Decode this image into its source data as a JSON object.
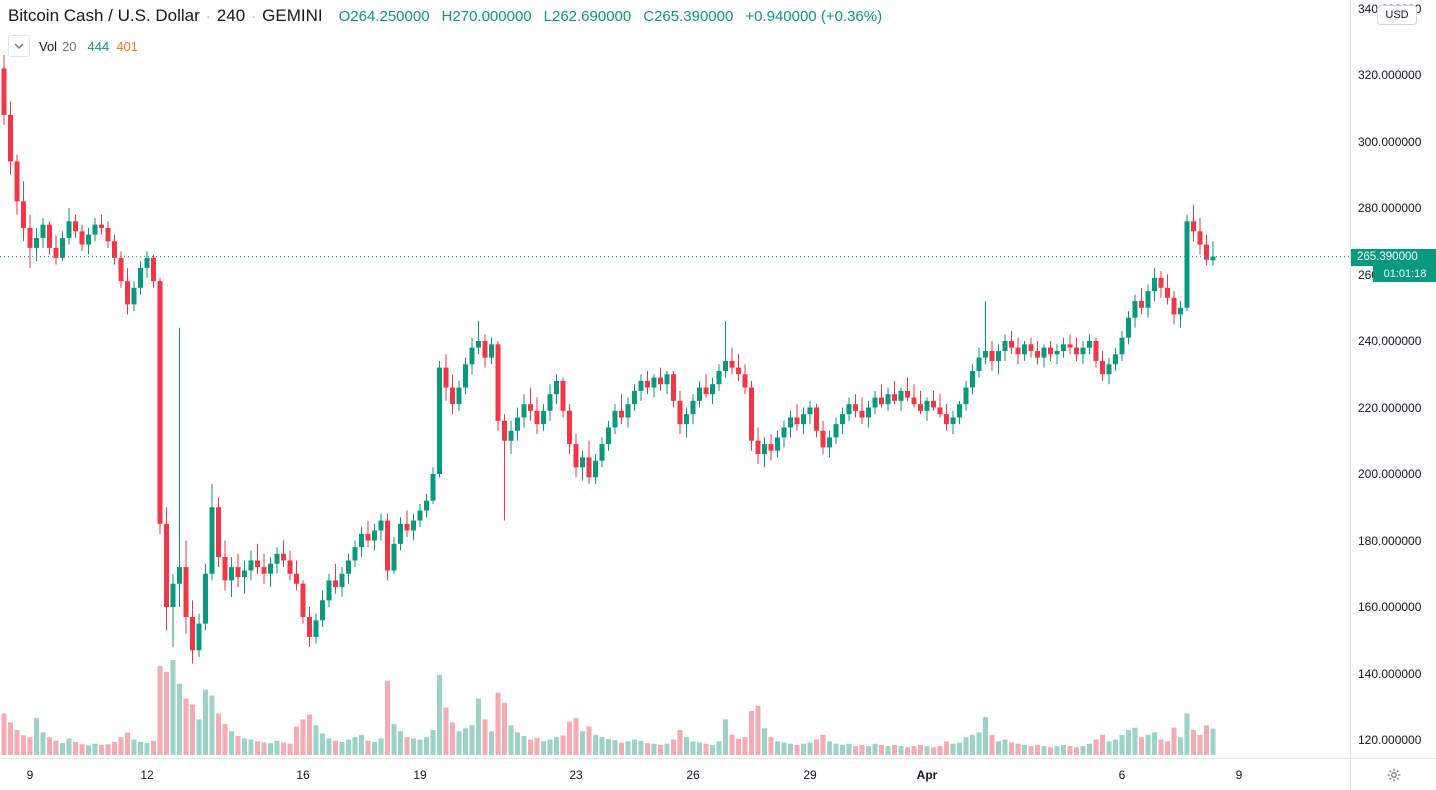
{
  "header": {
    "symbol_title": "Bitcoin Cash / U.S. Dollar",
    "separator": "·",
    "interval": "240",
    "exchange": "GEMINI",
    "ohlc": {
      "open": "O264.250000",
      "high": "H270.000000",
      "low": "L262.690000",
      "close": "C265.390000",
      "change": "+0.940000 (+0.36%)"
    },
    "indicator": {
      "name": "Vol",
      "length": "20",
      "value": "444",
      "ma_value": "401"
    }
  },
  "price_axis": {
    "unit_button": "USD",
    "labels": [
      {
        "price": 340,
        "text": "340.000000"
      },
      {
        "price": 320,
        "text": "320.000000"
      },
      {
        "price": 300,
        "text": "300.000000"
      },
      {
        "price": 280,
        "text": "280.000000"
      },
      {
        "price": 260,
        "text": "260.000000"
      },
      {
        "price": 240,
        "text": "240.000000"
      },
      {
        "price": 220,
        "text": "220.000000"
      },
      {
        "price": 200,
        "text": "200.000000"
      },
      {
        "price": 180,
        "text": "180.000000"
      },
      {
        "price": 160,
        "text": "160.000000"
      },
      {
        "price": 140,
        "text": "140.000000"
      },
      {
        "price": 120,
        "text": "120.000000"
      }
    ],
    "price_badge": {
      "text": "265.390000"
    },
    "countdown_badge": {
      "text": "01:01:18"
    }
  },
  "time_axis": {
    "labels": [
      {
        "text": "9",
        "bar": 4
      },
      {
        "text": "12",
        "bar": 22
      },
      {
        "text": "16",
        "bar": 46
      },
      {
        "text": "19",
        "bar": 64
      },
      {
        "text": "23",
        "bar": 88
      },
      {
        "text": "26",
        "bar": 106
      },
      {
        "text": "29",
        "bar": 124
      },
      {
        "text": "Apr",
        "bar": 142,
        "bold": true
      },
      {
        "text": "6",
        "bar": 172
      },
      {
        "text": "9",
        "bar": 190
      }
    ]
  },
  "colors": {
    "up": "#089981",
    "down": "#f23645",
    "vol_up": "#9bd3c8",
    "vol_down": "#f6aab2",
    "axis_text": "#131722",
    "border": "#e0e3eb",
    "ma_orange": "#f57c00"
  },
  "chart_data": {
    "type": "candlestick+volume",
    "title": "Bitcoin Cash / U.S. Dollar",
    "exchange": "GEMINI",
    "interval_minutes": 240,
    "last_price": 265.39,
    "price_line_style": "dotted",
    "ylim": [
      120,
      340
    ],
    "volume_scale_max": 1600,
    "legend_position": "top-left",
    "grid": false,
    "columns": [
      "open",
      "high",
      "low",
      "close",
      "volume"
    ],
    "candles": [
      [
        322,
        326,
        305,
        308,
        700
      ],
      [
        308,
        312,
        290,
        294,
        550
      ],
      [
        294,
        296,
        278,
        282,
        420
      ],
      [
        282,
        288,
        270,
        274,
        330
      ],
      [
        274,
        278,
        262,
        268,
        300
      ],
      [
        268,
        274,
        264,
        271,
        620
      ],
      [
        271,
        277,
        268,
        275,
        380
      ],
      [
        275,
        276,
        266,
        268,
        300
      ],
      [
        268,
        272,
        263,
        265,
        240
      ],
      [
        265,
        273,
        264,
        271,
        200
      ],
      [
        271,
        280,
        269,
        276,
        280
      ],
      [
        276,
        278,
        271,
        273,
        220
      ],
      [
        273,
        275,
        267,
        269,
        180
      ],
      [
        269,
        274,
        266,
        272,
        160
      ],
      [
        272,
        277,
        270,
        275,
        190
      ],
      [
        275,
        278,
        272,
        274,
        170
      ],
      [
        274,
        276,
        268,
        270,
        180
      ],
      [
        270,
        272,
        263,
        265,
        220
      ],
      [
        265,
        267,
        256,
        258,
        300
      ],
      [
        258,
        262,
        248,
        251,
        380
      ],
      [
        251,
        258,
        249,
        256,
        260
      ],
      [
        256,
        264,
        254,
        262,
        220
      ],
      [
        262,
        267,
        259,
        265,
        200
      ],
      [
        265,
        266,
        256,
        258,
        240
      ],
      [
        258,
        259,
        182,
        185,
        1500
      ],
      [
        185,
        190,
        153,
        160,
        1400
      ],
      [
        160,
        170,
        148,
        167,
        1600
      ],
      [
        167,
        244,
        160,
        172,
        1200
      ],
      [
        172,
        180,
        152,
        157,
        950
      ],
      [
        157,
        162,
        143,
        147,
        850
      ],
      [
        147,
        158,
        145,
        155,
        600
      ],
      [
        155,
        173,
        153,
        170,
        1100
      ],
      [
        170,
        197,
        168,
        190,
        1000
      ],
      [
        190,
        193,
        172,
        175,
        700
      ],
      [
        175,
        180,
        165,
        168,
        520
      ],
      [
        168,
        175,
        163,
        172,
        400
      ],
      [
        172,
        176,
        166,
        169,
        320
      ],
      [
        169,
        174,
        164,
        171,
        280
      ],
      [
        171,
        177,
        168,
        174,
        260
      ],
      [
        174,
        179,
        170,
        172,
        230
      ],
      [
        172,
        176,
        167,
        170,
        210
      ],
      [
        170,
        175,
        166,
        173,
        200
      ],
      [
        173,
        178,
        170,
        176,
        240
      ],
      [
        176,
        180,
        172,
        174,
        210
      ],
      [
        174,
        177,
        168,
        170,
        190
      ],
      [
        170,
        174,
        165,
        167,
        480
      ],
      [
        167,
        168,
        155,
        157,
        600
      ],
      [
        157,
        160,
        148,
        151,
        680
      ],
      [
        151,
        158,
        149,
        156,
        500
      ],
      [
        156,
        165,
        154,
        162,
        360
      ],
      [
        162,
        170,
        160,
        168,
        280
      ],
      [
        168,
        173,
        164,
        166,
        240
      ],
      [
        166,
        172,
        163,
        170,
        220
      ],
      [
        170,
        176,
        167,
        174,
        260
      ],
      [
        174,
        180,
        172,
        178,
        300
      ],
      [
        178,
        184,
        175,
        182,
        340
      ],
      [
        182,
        186,
        178,
        180,
        240
      ],
      [
        180,
        185,
        177,
        183,
        220
      ],
      [
        183,
        188,
        180,
        186,
        280
      ],
      [
        186,
        188,
        168,
        171,
        1250
      ],
      [
        171,
        181,
        170,
        179,
        520
      ],
      [
        179,
        187,
        177,
        185,
        400
      ],
      [
        185,
        189,
        181,
        183,
        300
      ],
      [
        183,
        188,
        180,
        186,
        280
      ],
      [
        186,
        191,
        184,
        189,
        260
      ],
      [
        189,
        194,
        187,
        192,
        300
      ],
      [
        192,
        202,
        191,
        200,
        420
      ],
      [
        200,
        234,
        199,
        232,
        1350
      ],
      [
        232,
        236,
        222,
        226,
        800
      ],
      [
        226,
        230,
        218,
        221,
        550
      ],
      [
        221,
        228,
        219,
        226,
        400
      ],
      [
        226,
        235,
        224,
        233,
        450
      ],
      [
        233,
        241,
        230,
        238,
        500
      ],
      [
        238,
        246,
        236,
        240,
        950
      ],
      [
        240,
        242,
        232,
        235,
        600
      ],
      [
        235,
        241,
        233,
        239,
        400
      ],
      [
        239,
        240,
        213,
        216,
        1050
      ],
      [
        216,
        218,
        186,
        210,
        880
      ],
      [
        210,
        216,
        206,
        213,
        500
      ],
      [
        213,
        220,
        210,
        217,
        380
      ],
      [
        217,
        224,
        214,
        221,
        320
      ],
      [
        221,
        226,
        216,
        219,
        260
      ],
      [
        219,
        223,
        212,
        215,
        290
      ],
      [
        215,
        221,
        213,
        219,
        230
      ],
      [
        219,
        227,
        216,
        224,
        260
      ],
      [
        224,
        230,
        221,
        228,
        300
      ],
      [
        228,
        229,
        217,
        219,
        330
      ],
      [
        219,
        221,
        206,
        209,
        560
      ],
      [
        209,
        212,
        199,
        202,
        620
      ],
      [
        202,
        207,
        198,
        205,
        400
      ],
      [
        205,
        210,
        197,
        199,
        480
      ],
      [
        199,
        206,
        197,
        204,
        340
      ],
      [
        204,
        211,
        202,
        209,
        300
      ],
      [
        209,
        216,
        207,
        214,
        270
      ],
      [
        214,
        221,
        212,
        219,
        250
      ],
      [
        219,
        224,
        215,
        217,
        210
      ],
      [
        217,
        223,
        214,
        221,
        230
      ],
      [
        221,
        227,
        219,
        225,
        260
      ],
      [
        225,
        230,
        222,
        228,
        240
      ],
      [
        228,
        231,
        224,
        226,
        200
      ],
      [
        226,
        230,
        223,
        229,
        190
      ],
      [
        229,
        232,
        225,
        227,
        170
      ],
      [
        227,
        231,
        224,
        230,
        190
      ],
      [
        230,
        231,
        220,
        222,
        260
      ],
      [
        222,
        225,
        212,
        215,
        420
      ],
      [
        215,
        220,
        211,
        218,
        300
      ],
      [
        218,
        224,
        215,
        222,
        230
      ],
      [
        222,
        228,
        220,
        226,
        210
      ],
      [
        226,
        230,
        223,
        224,
        190
      ],
      [
        224,
        229,
        221,
        227,
        170
      ],
      [
        227,
        233,
        225,
        231,
        230
      ],
      [
        231,
        246,
        229,
        234,
        600
      ],
      [
        234,
        238,
        230,
        232,
        340
      ],
      [
        232,
        236,
        228,
        230,
        270
      ],
      [
        230,
        233,
        224,
        226,
        300
      ],
      [
        226,
        228,
        207,
        210,
        740
      ],
      [
        210,
        214,
        203,
        206,
        830
      ],
      [
        206,
        211,
        202,
        209,
        450
      ],
      [
        209,
        212,
        204,
        207,
        300
      ],
      [
        207,
        213,
        205,
        211,
        230
      ],
      [
        211,
        216,
        208,
        214,
        210
      ],
      [
        214,
        219,
        211,
        217,
        190
      ],
      [
        217,
        221,
        213,
        215,
        170
      ],
      [
        215,
        220,
        212,
        218,
        190
      ],
      [
        218,
        222,
        215,
        220,
        210
      ],
      [
        220,
        221,
        211,
        213,
        260
      ],
      [
        213,
        216,
        206,
        208,
        340
      ],
      [
        208,
        213,
        205,
        211,
        230
      ],
      [
        211,
        217,
        209,
        215,
        190
      ],
      [
        215,
        220,
        212,
        218,
        170
      ],
      [
        218,
        223,
        216,
        221,
        190
      ],
      [
        221,
        224,
        217,
        219,
        150
      ],
      [
        219,
        223,
        215,
        217,
        170
      ],
      [
        217,
        222,
        214,
        220,
        150
      ],
      [
        220,
        225,
        218,
        223,
        190
      ],
      [
        223,
        227,
        220,
        221,
        170
      ],
      [
        221,
        226,
        219,
        224,
        150
      ],
      [
        224,
        228,
        221,
        222,
        170
      ],
      [
        222,
        226,
        219,
        225,
        150
      ],
      [
        225,
        229,
        222,
        223,
        130
      ],
      [
        223,
        227,
        220,
        221,
        150
      ],
      [
        221,
        225,
        218,
        219,
        170
      ],
      [
        219,
        223,
        216,
        222,
        150
      ],
      [
        222,
        225,
        219,
        220,
        130
      ],
      [
        220,
        224,
        217,
        218,
        150
      ],
      [
        218,
        221,
        213,
        215,
        230
      ],
      [
        215,
        219,
        212,
        217,
        190
      ],
      [
        217,
        222,
        215,
        221,
        210
      ],
      [
        221,
        228,
        219,
        226,
        300
      ],
      [
        226,
        233,
        224,
        231,
        340
      ],
      [
        231,
        238,
        229,
        235,
        380
      ],
      [
        235,
        252,
        233,
        237,
        640
      ],
      [
        237,
        240,
        231,
        234,
        340
      ],
      [
        234,
        239,
        230,
        237,
        230
      ],
      [
        237,
        242,
        234,
        240,
        260
      ],
      [
        240,
        243,
        236,
        238,
        210
      ],
      [
        238,
        241,
        233,
        236,
        190
      ],
      [
        236,
        240,
        234,
        239,
        170
      ],
      [
        239,
        241,
        235,
        237,
        150
      ],
      [
        237,
        240,
        233,
        235,
        170
      ],
      [
        235,
        239,
        232,
        238,
        150
      ],
      [
        238,
        240,
        234,
        236,
        130
      ],
      [
        236,
        239,
        233,
        237,
        150
      ],
      [
        237,
        241,
        235,
        239,
        170
      ],
      [
        239,
        242,
        236,
        238,
        150
      ],
      [
        238,
        241,
        234,
        236,
        130
      ],
      [
        236,
        240,
        233,
        238,
        150
      ],
      [
        238,
        242,
        236,
        240,
        190
      ],
      [
        240,
        241,
        232,
        234,
        260
      ],
      [
        234,
        237,
        228,
        230,
        340
      ],
      [
        230,
        235,
        227,
        233,
        230
      ],
      [
        233,
        238,
        231,
        236,
        260
      ],
      [
        236,
        243,
        234,
        241,
        340
      ],
      [
        241,
        249,
        239,
        247,
        420
      ],
      [
        247,
        254,
        244,
        252,
        460
      ],
      [
        252,
        256,
        248,
        250,
        300
      ],
      [
        250,
        257,
        247,
        255,
        340
      ],
      [
        255,
        262,
        252,
        259,
        380
      ],
      [
        259,
        261,
        253,
        256,
        260
      ],
      [
        256,
        260,
        251,
        253,
        230
      ],
      [
        253,
        255,
        245,
        248,
        460
      ],
      [
        248,
        252,
        244,
        250,
        300
      ],
      [
        250,
        278,
        249,
        276,
        700
      ],
      [
        276,
        281,
        270,
        273,
        420
      ],
      [
        273,
        277,
        266,
        269,
        340
      ],
      [
        269,
        272,
        262.8,
        264.45,
        500
      ],
      [
        264.25,
        270,
        262.69,
        265.39,
        444
      ]
    ]
  }
}
